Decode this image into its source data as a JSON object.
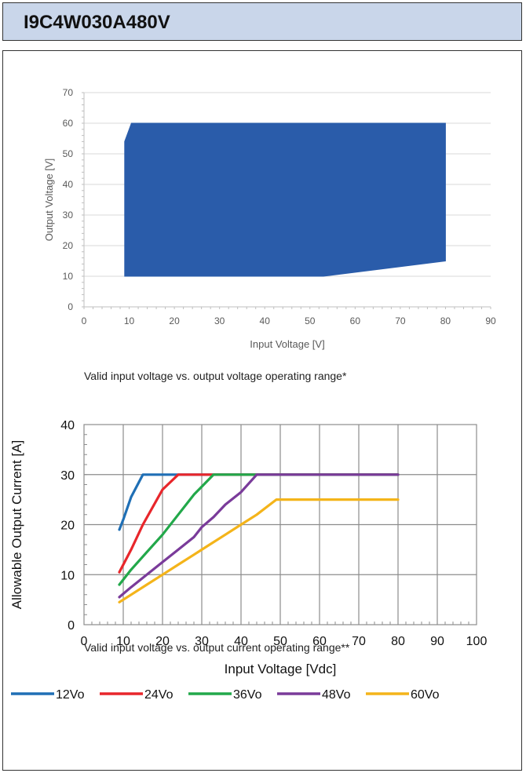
{
  "header": {
    "title": "I9C4W030A480V"
  },
  "captions": {
    "chart1": "Valid input voltage vs. output voltage operating range*",
    "chart2": "Valid input voltage vs. output current operating range**"
  },
  "chart_data": [
    {
      "type": "area",
      "xlabel": "Input Voltage [V]",
      "ylabel": "Output Voltage [V]",
      "xlim": [
        0,
        90
      ],
      "ylim": [
        0,
        70
      ],
      "xticks": [
        0,
        10,
        20,
        30,
        40,
        50,
        60,
        70,
        80,
        90
      ],
      "yticks": [
        0,
        10,
        20,
        30,
        40,
        50,
        60,
        70
      ],
      "grid": "horizontal",
      "color": "#2a5caa",
      "polygon": [
        [
          9,
          10
        ],
        [
          9,
          54
        ],
        [
          10.5,
          60
        ],
        [
          80,
          60
        ],
        [
          80,
          15
        ],
        [
          53,
          10
        ]
      ]
    },
    {
      "type": "line",
      "xlabel": "Input Voltage [Vdc]",
      "ylabel": "Allowable Output Current [A]",
      "xlim": [
        0,
        100
      ],
      "ylim": [
        0,
        40
      ],
      "xticks": [
        0,
        10,
        20,
        30,
        40,
        50,
        60,
        70,
        80,
        90,
        100
      ],
      "yticks": [
        0,
        10,
        20,
        30,
        40
      ],
      "grid": "both",
      "legend": "bottom",
      "series": [
        {
          "name": "12Vo",
          "color": "#1f6fb5",
          "points": [
            [
              9,
              19
            ],
            [
              10,
              21
            ],
            [
              12,
              25.5
            ],
            [
              15,
              30
            ],
            [
              80,
              30
            ]
          ]
        },
        {
          "name": "24Vo",
          "color": "#e8262b",
          "points": [
            [
              9,
              10.5
            ],
            [
              12,
              15
            ],
            [
              15,
              20
            ],
            [
              20,
              27
            ],
            [
              24,
              30
            ],
            [
              80,
              30
            ]
          ]
        },
        {
          "name": "36Vo",
          "color": "#22a84a",
          "points": [
            [
              9,
              8
            ],
            [
              12,
              11
            ],
            [
              16,
              14.5
            ],
            [
              20,
              18
            ],
            [
              24,
              22
            ],
            [
              28,
              26
            ],
            [
              33,
              30
            ],
            [
              80,
              30
            ]
          ]
        },
        {
          "name": "48Vo",
          "color": "#7a3b9a",
          "points": [
            [
              9,
              5.5
            ],
            [
              12,
              7.5
            ],
            [
              16,
              10
            ],
            [
              20,
              12.5
            ],
            [
              24,
              15
            ],
            [
              28,
              17.5
            ],
            [
              30,
              19.5
            ],
            [
              33,
              21.5
            ],
            [
              36,
              24
            ],
            [
              40,
              26.5
            ],
            [
              44,
              30
            ],
            [
              80,
              30
            ]
          ]
        },
        {
          "name": "60Vo",
          "color": "#f4b41a",
          "points": [
            [
              9,
              4.5
            ],
            [
              12,
              6
            ],
            [
              16,
              8
            ],
            [
              20,
              10
            ],
            [
              24,
              12
            ],
            [
              28,
              14
            ],
            [
              32,
              16
            ],
            [
              36,
              18
            ],
            [
              40,
              20
            ],
            [
              44,
              22
            ],
            [
              49,
              25
            ],
            [
              80,
              25
            ]
          ]
        }
      ]
    }
  ]
}
